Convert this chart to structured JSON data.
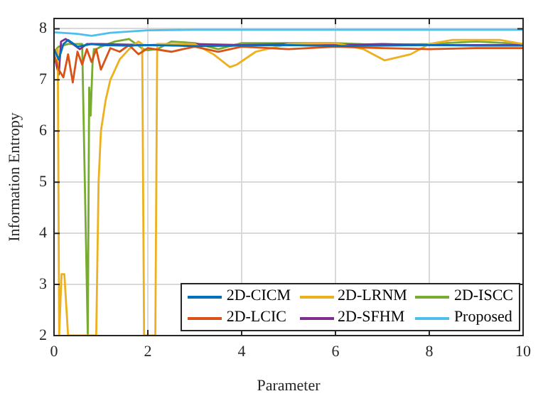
{
  "chart_data": {
    "type": "line",
    "xlabel": "Parameter",
    "ylabel": "Information Entropy",
    "xlim": [
      0,
      10
    ],
    "xticks": [
      0,
      2,
      4,
      6,
      8,
      10
    ],
    "ylim": [
      2,
      8.2
    ],
    "yticks": [
      2,
      3,
      4,
      5,
      6,
      7,
      8
    ],
    "grid": true,
    "legend": "bottom right",
    "marker": "none",
    "line_style": "solid",
    "series": [
      {
        "name": "2D-CICM",
        "color": "#0072bd",
        "x": [
          0,
          0.1,
          0.2,
          0.3,
          0.5,
          0.8,
          1,
          1.5,
          2,
          3,
          4,
          5,
          6,
          7,
          8,
          9,
          10
        ],
        "values": [
          7.6,
          7.4,
          7.7,
          7.78,
          7.65,
          7.7,
          7.68,
          7.67,
          7.68,
          7.66,
          7.67,
          7.68,
          7.66,
          7.67,
          7.68,
          7.67,
          7.67
        ]
      },
      {
        "name": "2D-LCIC",
        "color": "#d95319",
        "x": [
          0,
          0.1,
          0.2,
          0.3,
          0.4,
          0.5,
          0.6,
          0.7,
          0.8,
          0.9,
          1,
          1.2,
          1.4,
          1.6,
          1.8,
          2,
          2.5,
          3,
          3.5,
          4,
          5,
          6,
          7,
          8,
          9,
          10
        ],
        "values": [
          7.5,
          7.2,
          7.05,
          7.5,
          6.95,
          7.55,
          7.3,
          7.6,
          7.35,
          7.6,
          7.2,
          7.62,
          7.55,
          7.68,
          7.5,
          7.62,
          7.55,
          7.65,
          7.55,
          7.65,
          7.6,
          7.65,
          7.62,
          7.6,
          7.62,
          7.62
        ]
      },
      {
        "name": "2D-LRNM",
        "color": "#edb120",
        "x": [
          0,
          0.08,
          0.11,
          0.16,
          0.22,
          0.3,
          0.9,
          0.95,
          1.0,
          1.1,
          1.2,
          1.4,
          1.6,
          1.8,
          1.88,
          1.92,
          2.16,
          2.2,
          2.5,
          3,
          3.4,
          3.75,
          3.9,
          4.3,
          5,
          6,
          6.6,
          7.05,
          7.6,
          8,
          8.5,
          9.5,
          10
        ],
        "values": [
          7.5,
          7.6,
          2,
          3.2,
          3.2,
          2,
          2,
          5,
          6,
          6.6,
          7,
          7.4,
          7.6,
          7.75,
          7.7,
          2,
          2,
          7.7,
          7.7,
          7.7,
          7.5,
          7.25,
          7.3,
          7.55,
          7.7,
          7.72,
          7.6,
          7.38,
          7.5,
          7.7,
          7.78,
          7.78,
          7.7
        ]
      },
      {
        "name": "2D-SFHM",
        "color": "#7e2f8e",
        "x": [
          0,
          0.1,
          0.15,
          0.25,
          0.4,
          0.55,
          0.7,
          1,
          2,
          3,
          4,
          5,
          6,
          7,
          8,
          9,
          10
        ],
        "values": [
          7.5,
          7.1,
          7.75,
          7.8,
          7.7,
          7.6,
          7.7,
          7.7,
          7.68,
          7.7,
          7.68,
          7.7,
          7.68,
          7.7,
          7.68,
          7.68,
          7.68
        ]
      },
      {
        "name": "2D-ISCC",
        "color": "#77ac30",
        "x": [
          0,
          0.1,
          0.3,
          0.6,
          0.72,
          0.75,
          0.78,
          0.82,
          0.85,
          0.9,
          1.0,
          1.3,
          1.6,
          1.9,
          2.0,
          2.2,
          2.5,
          3,
          3.5,
          4,
          5,
          6,
          7,
          8,
          9,
          10
        ],
        "values": [
          7.55,
          7.65,
          7.7,
          7.7,
          2,
          6.85,
          6.3,
          7.3,
          7.6,
          7.6,
          7.65,
          7.75,
          7.8,
          7.6,
          7.58,
          7.6,
          7.75,
          7.72,
          7.6,
          7.72,
          7.72,
          7.72,
          7.68,
          7.7,
          7.75,
          7.7
        ]
      },
      {
        "name": "Proposed",
        "color": "#4dbeee",
        "x": [
          0,
          0.5,
          0.8,
          1.2,
          2,
          3,
          5,
          10
        ],
        "values": [
          7.93,
          7.9,
          7.86,
          7.92,
          7.97,
          7.98,
          7.98,
          7.98
        ]
      }
    ]
  }
}
